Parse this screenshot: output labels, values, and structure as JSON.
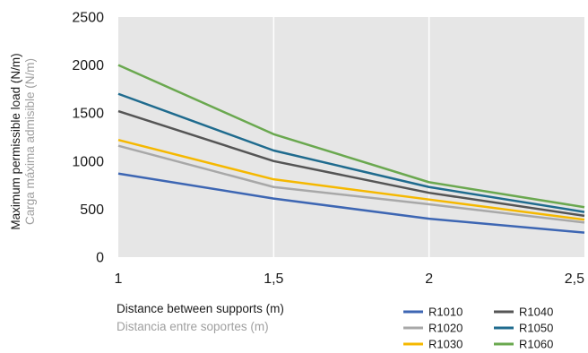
{
  "chart_data": {
    "type": "line",
    "x": [
      1,
      1.5,
      2,
      2.5
    ],
    "x_tick_labels": [
      "1",
      "1,5",
      "2",
      "2,5"
    ],
    "xlim": [
      1,
      2.5
    ],
    "ylim": [
      0,
      2500
    ],
    "y_ticks": [
      0,
      500,
      1000,
      1500,
      2000,
      2500
    ],
    "y_tick_labels": [
      "0",
      "500",
      "1000",
      "1500",
      "2000",
      "2500"
    ],
    "xlabel": "Distance between supports (m)",
    "xlabel_secondary": "Distancia entre soportes (m)",
    "ylabel": "Maximum permissible load (N/m)",
    "ylabel_secondary": "Carga máxima admisible (N/m)",
    "grid": "vertical",
    "legend_position": "bottom-right",
    "plot_background": "#e6e6e6",
    "series": [
      {
        "name": "R1010",
        "color": "#3d66b3",
        "values": [
          870,
          610,
          400,
          255
        ]
      },
      {
        "name": "R1020",
        "color": "#a8a8a8",
        "values": [
          1160,
          730,
          550,
          360
        ]
      },
      {
        "name": "R1030",
        "color": "#f5b800",
        "values": [
          1220,
          810,
          600,
          390
        ]
      },
      {
        "name": "R1040",
        "color": "#555555",
        "values": [
          1520,
          1000,
          670,
          430
        ]
      },
      {
        "name": "R1050",
        "color": "#1f6b8e",
        "values": [
          1700,
          1110,
          730,
          470
        ]
      },
      {
        "name": "R1060",
        "color": "#6aa84f",
        "values": [
          2000,
          1280,
          780,
          520
        ]
      }
    ]
  }
}
